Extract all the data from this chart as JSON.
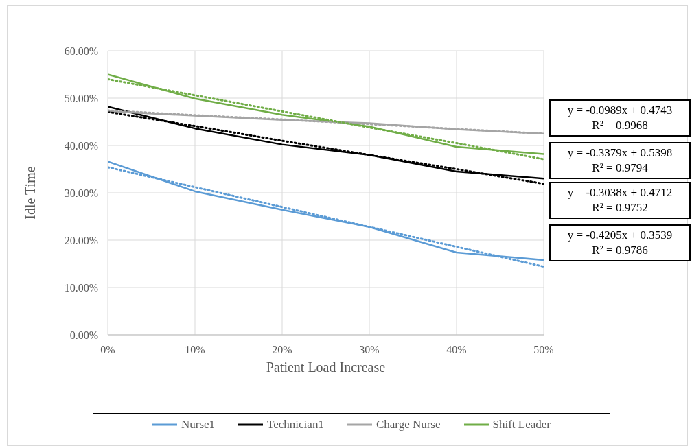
{
  "chart_data": {
    "type": "line",
    "xlabel": "Patient Load Increase",
    "ylabel": "Idle Time",
    "x": [
      0,
      10,
      20,
      30,
      40,
      50
    ],
    "series": [
      {
        "name": "Nurse1",
        "color": "#5b9bd5",
        "values": [
          36.6,
          30.3,
          26.4,
          22.8,
          17.4,
          15.8
        ]
      },
      {
        "name": "Technician1",
        "color": "#000000",
        "values": [
          48.2,
          43.6,
          40.2,
          38.0,
          34.5,
          33.0
        ]
      },
      {
        "name": "Charge Nurse",
        "color": "#a5a5a5",
        "values": [
          47.2,
          46.3,
          45.4,
          44.7,
          43.4,
          42.5
        ]
      },
      {
        "name": "Shift Leader",
        "color": "#70ad47",
        "values": [
          55.0,
          49.9,
          46.5,
          44.0,
          39.7,
          38.2
        ]
      },
      {
        "type": "line",
        "color": "#5b9bd5",
        "line_style": "dotted",
        "values": [
          35.4,
          31.2,
          27.0,
          22.8,
          18.6,
          14.4
        ]
      },
      {
        "type": "line",
        "color": "#000000",
        "line_style": "dotted",
        "values": [
          47.1,
          44.1,
          41.0,
          38.0,
          35.0,
          31.9
        ]
      },
      {
        "type": "line",
        "color": "#a5a5a5",
        "line_style": "dotted",
        "values": [
          47.4,
          46.4,
          45.5,
          44.5,
          43.5,
          42.5
        ]
      },
      {
        "type": "line",
        "color": "#70ad47",
        "line_style": "dotted",
        "values": [
          54.0,
          50.6,
          47.2,
          43.8,
          40.5,
          37.1
        ]
      }
    ],
    "xlim": [
      0,
      50
    ],
    "xticks": [
      {
        "value": 0,
        "label": "0%"
      },
      {
        "value": 10,
        "label": "10%"
      },
      {
        "value": 20,
        "label": "20%"
      },
      {
        "value": 30,
        "label": "30%"
      },
      {
        "value": 40,
        "label": "40%"
      },
      {
        "value": 50,
        "label": "50%"
      }
    ],
    "ylim": [
      0,
      60
    ],
    "yticks": [
      {
        "value": 0,
        "label": "0.00%"
      },
      {
        "value": 10,
        "label": "10.00%"
      },
      {
        "value": 20,
        "label": "20.00%"
      },
      {
        "value": 30,
        "label": "30.00%"
      },
      {
        "value": 40,
        "label": "40.00%"
      },
      {
        "value": 50,
        "label": "50.00%"
      },
      {
        "value": 60,
        "label": "60.00%"
      }
    ],
    "grid": true,
    "legend": "bottom",
    "marker": "none",
    "line_style": "solid",
    "annotations": [
      "y = -0.0989x + 0.4743\nR² = 0.9968",
      "y = -0.3379x + 0.5398\nR² = 0.9794",
      "y = -0.3038x + 0.4712\nR² = 0.9752",
      "y = -0.4205x + 0.3539\nR² = 0.9786"
    ]
  }
}
